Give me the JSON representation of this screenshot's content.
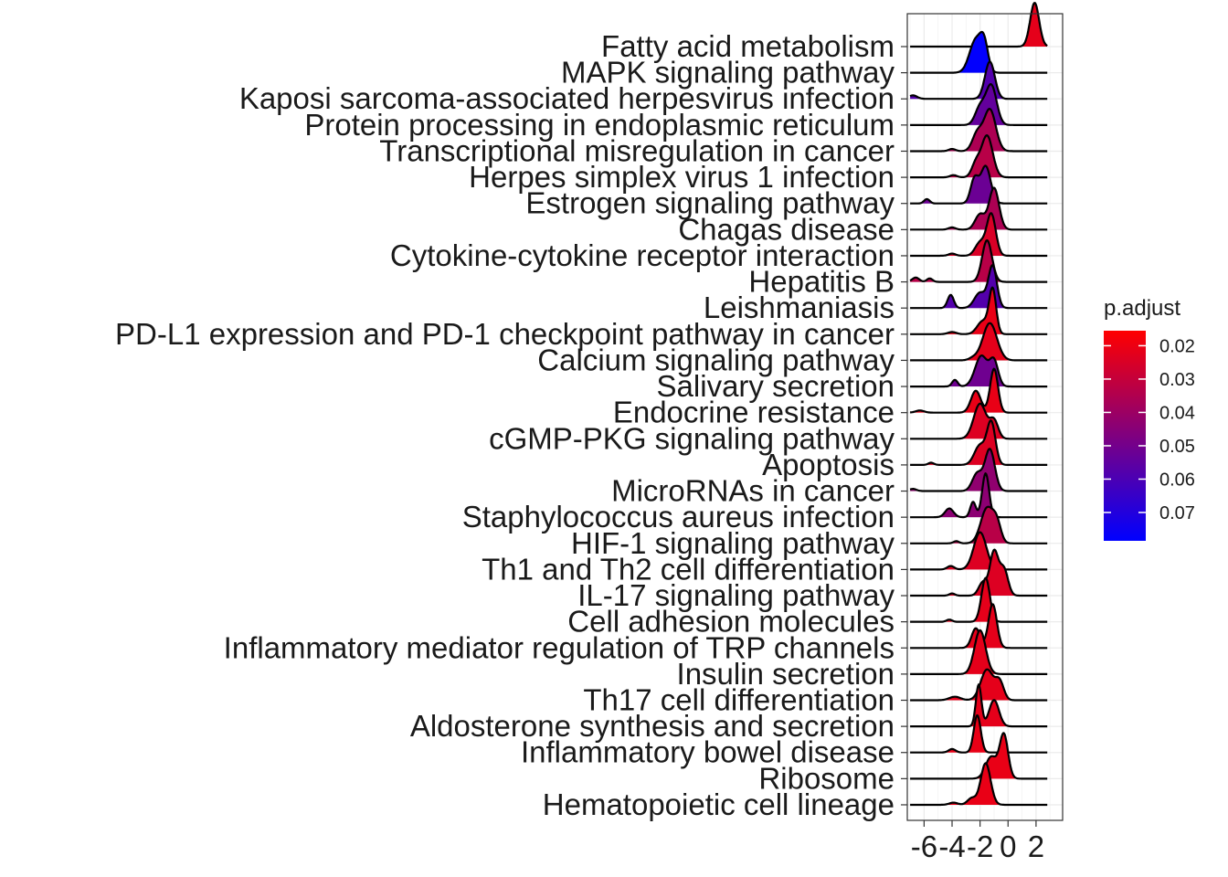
{
  "chart_data": {
    "type": "ridgeline",
    "title": "",
    "xlabel": "",
    "ylabel": "",
    "xlim": [
      -7.2,
      3.9
    ],
    "xticks": [
      -6,
      -4,
      -2,
      0,
      2
    ],
    "xtick_labels": [
      "-6",
      "-4",
      "-2",
      "0",
      "2"
    ],
    "grid": true,
    "legend": {
      "title": "p.adjust",
      "position": "right",
      "ticks": [
        0.02,
        0.03,
        0.04,
        0.05,
        0.06,
        0.07
      ],
      "tick_labels": [
        "0.02",
        "0.03",
        "0.04",
        "0.05",
        "0.06",
        "0.07"
      ],
      "range": [
        0.0155,
        0.0785
      ],
      "color_low": "#FF0000",
      "color_high": "#0000FF"
    },
    "series": [
      {
        "name": "Fatty acid metabolism",
        "p_adjust": 0.022,
        "peaks": [
          [
            1.9,
            0.32,
            1.0
          ]
        ]
      },
      {
        "name": "MAPK signaling pathway",
        "p_adjust": 0.078,
        "peaks": [
          [
            -2.3,
            0.45,
            0.75
          ],
          [
            -1.7,
            0.28,
            0.55
          ]
        ]
      },
      {
        "name": "Kaposi sarcoma-associated herpesvirus infection",
        "p_adjust": 0.058,
        "peaks": [
          [
            -1.3,
            0.35,
            0.85
          ],
          [
            -6.8,
            0.3,
            0.08
          ]
        ]
      },
      {
        "name": "Protein processing in endoplasmic reticulum",
        "p_adjust": 0.054,
        "peaks": [
          [
            -1.2,
            0.38,
            0.9
          ],
          [
            -2.0,
            0.35,
            0.4
          ]
        ]
      },
      {
        "name": "Transcriptional misregulation in cancer",
        "p_adjust": 0.036,
        "peaks": [
          [
            -1.3,
            0.42,
            0.95
          ],
          [
            -2.2,
            0.35,
            0.4
          ],
          [
            -4.0,
            0.25,
            0.05
          ]
        ]
      },
      {
        "name": "Herpes simplex virus 1 infection",
        "p_adjust": 0.033,
        "peaks": [
          [
            -1.5,
            0.4,
            0.95
          ],
          [
            -2.3,
            0.3,
            0.3
          ],
          [
            -3.9,
            0.25,
            0.05
          ]
        ]
      },
      {
        "name": "Estrogen signaling pathway",
        "p_adjust": 0.052,
        "peaks": [
          [
            -1.6,
            0.36,
            0.85
          ],
          [
            -2.4,
            0.28,
            0.55
          ],
          [
            -5.8,
            0.2,
            0.1
          ]
        ]
      },
      {
        "name": "Chagas disease",
        "p_adjust": 0.036,
        "peaks": [
          [
            -1.0,
            0.35,
            0.95
          ],
          [
            -2.0,
            0.35,
            0.35
          ],
          [
            -4.0,
            0.25,
            0.05
          ]
        ]
      },
      {
        "name": "Cytokine-cytokine receptor interaction",
        "p_adjust": 0.025,
        "peaks": [
          [
            -1.2,
            0.32,
            0.95
          ],
          [
            -2.0,
            0.35,
            0.3
          ],
          [
            -4.0,
            0.25,
            0.05
          ]
        ]
      },
      {
        "name": "Hepatitis B",
        "p_adjust": 0.033,
        "peaks": [
          [
            -1.5,
            0.35,
            0.95
          ],
          [
            -6.6,
            0.25,
            0.1
          ],
          [
            -5.6,
            0.2,
            0.08
          ]
        ]
      },
      {
        "name": "Leishmaniasis",
        "p_adjust": 0.058,
        "peaks": [
          [
            -1.1,
            0.3,
            0.95
          ],
          [
            -2.0,
            0.4,
            0.35
          ],
          [
            -4.1,
            0.22,
            0.3
          ]
        ]
      },
      {
        "name": "PD-L1 expression and PD-1 checkpoint pathway in cancer",
        "p_adjust": 0.021,
        "peaks": [
          [
            -1.1,
            0.25,
            1.0
          ],
          [
            -1.8,
            0.4,
            0.3
          ],
          [
            -4.0,
            0.3,
            0.05
          ]
        ]
      },
      {
        "name": "Calcium signaling pathway",
        "p_adjust": 0.022,
        "peaks": [
          [
            -1.3,
            0.5,
            0.85
          ],
          [
            -2.5,
            0.3,
            0.05
          ]
        ]
      },
      {
        "name": "Salivary secretion",
        "p_adjust": 0.051,
        "peaks": [
          [
            -1.9,
            0.45,
            0.7
          ],
          [
            -1.0,
            0.3,
            0.55
          ],
          [
            -3.8,
            0.2,
            0.15
          ]
        ]
      },
      {
        "name": "Endocrine resistance",
        "p_adjust": 0.021,
        "peaks": [
          [
            -1.0,
            0.28,
            1.0
          ],
          [
            -2.3,
            0.35,
            0.5
          ],
          [
            -6.3,
            0.3,
            0.05
          ]
        ]
      },
      {
        "name": "cGMP-PKG signaling pathway",
        "p_adjust": 0.024,
        "peaks": [
          [
            -2.0,
            0.45,
            0.8
          ],
          [
            -1.0,
            0.3,
            0.4
          ]
        ]
      },
      {
        "name": "Apoptosis",
        "p_adjust": 0.024,
        "peaks": [
          [
            -1.2,
            0.3,
            0.95
          ],
          [
            -2.0,
            0.4,
            0.45
          ],
          [
            -5.5,
            0.2,
            0.05
          ]
        ]
      },
      {
        "name": "MicroRNAs in cancer",
        "p_adjust": 0.043,
        "peaks": [
          [
            -1.3,
            0.35,
            0.95
          ],
          [
            -2.2,
            0.35,
            0.4
          ],
          [
            -6.8,
            0.25,
            0.05
          ]
        ]
      },
      {
        "name": "Staphylococcus aureus infection",
        "p_adjust": 0.044,
        "peaks": [
          [
            -1.6,
            0.25,
            1.0
          ],
          [
            -2.5,
            0.2,
            0.35
          ],
          [
            -4.2,
            0.3,
            0.2
          ]
        ]
      },
      {
        "name": "HIF-1 signaling pathway",
        "p_adjust": 0.033,
        "peaks": [
          [
            -1.5,
            0.45,
            0.8
          ],
          [
            -0.8,
            0.3,
            0.4
          ],
          [
            -3.7,
            0.2,
            0.05
          ]
        ]
      },
      {
        "name": "Th1 and Th2 cell differentiation",
        "p_adjust": 0.024,
        "peaks": [
          [
            -2.0,
            0.45,
            0.85
          ],
          [
            -4.1,
            0.25,
            0.08
          ]
        ]
      },
      {
        "name": "IL-17 signaling pathway",
        "p_adjust": 0.024,
        "peaks": [
          [
            -1.0,
            0.3,
            1.0
          ],
          [
            -0.3,
            0.3,
            0.6
          ],
          [
            -1.8,
            0.3,
            0.3
          ],
          [
            -4.0,
            0.2,
            0.05
          ]
        ]
      },
      {
        "name": "Cell adhesion molecules",
        "p_adjust": 0.022,
        "peaks": [
          [
            -1.6,
            0.3,
            1.0
          ],
          [
            -4.2,
            0.2,
            0.05
          ]
        ]
      },
      {
        "name": "Inflammatory mediator regulation of TRP channels",
        "p_adjust": 0.022,
        "peaks": [
          [
            -1.1,
            0.3,
            1.0
          ],
          [
            -2.3,
            0.3,
            0.45
          ]
        ]
      },
      {
        "name": "Insulin secretion",
        "p_adjust": 0.022,
        "peaks": [
          [
            -2.0,
            0.4,
            1.0
          ]
        ]
      },
      {
        "name": "Th17 cell differentiation",
        "p_adjust": 0.022,
        "peaks": [
          [
            -1.5,
            0.45,
            0.7
          ],
          [
            -0.6,
            0.3,
            0.4
          ],
          [
            -3.8,
            0.4,
            0.08
          ]
        ]
      },
      {
        "name": "Aldosterone synthesis and secretion",
        "p_adjust": 0.022,
        "peaks": [
          [
            -2.1,
            0.2,
            0.95
          ],
          [
            -1.0,
            0.35,
            0.6
          ]
        ]
      },
      {
        "name": "Inflammatory bowel disease",
        "p_adjust": 0.021,
        "peaks": [
          [
            -2.2,
            0.25,
            0.85
          ],
          [
            -4.0,
            0.25,
            0.08
          ]
        ]
      },
      {
        "name": "Ribosome",
        "p_adjust": 0.021,
        "peaks": [
          [
            -0.3,
            0.3,
            1.0
          ],
          [
            -1.2,
            0.4,
            0.5
          ]
        ]
      },
      {
        "name": "Hematopoietic cell lineage",
        "p_adjust": 0.021,
        "peaks": [
          [
            -1.6,
            0.35,
            0.95
          ],
          [
            -2.6,
            0.3,
            0.15
          ],
          [
            -3.9,
            0.3,
            0.05
          ]
        ]
      }
    ]
  }
}
